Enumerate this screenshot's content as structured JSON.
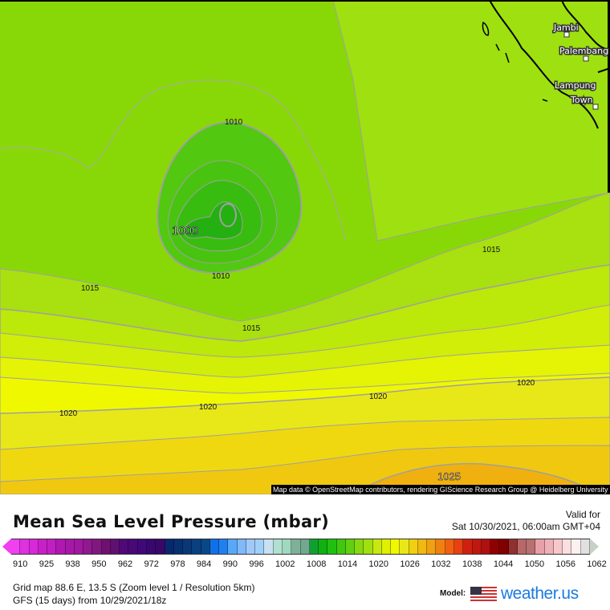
{
  "map": {
    "contour_labels": [
      {
        "text": "1010"
      },
      {
        "text": "1000"
      },
      {
        "text": "1010"
      },
      {
        "text": "1015"
      },
      {
        "text": "1015"
      },
      {
        "text": "1015"
      },
      {
        "text": "1020"
      },
      {
        "text": "1020"
      },
      {
        "text": "1020"
      },
      {
        "text": "1020"
      },
      {
        "text": "1025"
      }
    ],
    "cities": [
      "Jambi",
      "Palembang",
      "Lampung",
      "Town"
    ],
    "attribution": "Map data © OpenStreetMap contributors, rendering GIScience Research Group @ Heidelberg University"
  },
  "legend": {
    "title": "Mean Sea Level Pressure (mbar)",
    "valid_label": "Valid for",
    "valid_time": "Sat 10/30/2021, 06:00am GMT+04",
    "ticks": [
      "910",
      "925",
      "938",
      "950",
      "962",
      "972",
      "978",
      "984",
      "990",
      "996",
      "1002",
      "1008",
      "1014",
      "1020",
      "1026",
      "1032",
      "1038",
      "1044",
      "1050",
      "1056",
      "1062"
    ],
    "colors": [
      "#f040f0",
      "#e030e0",
      "#d828d8",
      "#c820c8",
      "#c020c0",
      "#b018b0",
      "#a818a8",
      "#a018a0",
      "#901890",
      "#801880",
      "#701070",
      "#601070",
      "#500878",
      "#480878",
      "#400878",
      "#380870",
      "#380868",
      "#082870",
      "#083070",
      "#083878",
      "#084080",
      "#084888",
      "#1070e8",
      "#2080f0",
      "#58a8f8",
      "#80b8f8",
      "#a0c8f8",
      "#a0d0f8",
      "#c8e0f0",
      "#b0e0d0",
      "#a0d8c0",
      "#80b098",
      "#70a890",
      "#10a030",
      "#10b010",
      "#20c010",
      "#40c810",
      "#60d010",
      "#88d810",
      "#a0e010",
      "#c8e810",
      "#e0f000",
      "#f0f800",
      "#e8e818",
      "#f0d010",
      "#f0b810",
      "#f0a010",
      "#f08010",
      "#f06010",
      "#e84010",
      "#d02010",
      "#c01810",
      "#b01010",
      "#900000",
      "#800000",
      "#903030",
      "#b86868",
      "#b87070",
      "#e8a0a8",
      "#f0b0b8",
      "#f8c8c8",
      "#f8e0e0",
      "#fff0f0",
      "#e0e0e0"
    ]
  },
  "info": {
    "grid": "Grid map 88.6 E, 13.5 S (Zoom level 1 / Resolution 5km)",
    "run": "GFS (15 days) from  10/29/2021/18z",
    "model_label": "Model:",
    "brand": "weather.us"
  }
}
